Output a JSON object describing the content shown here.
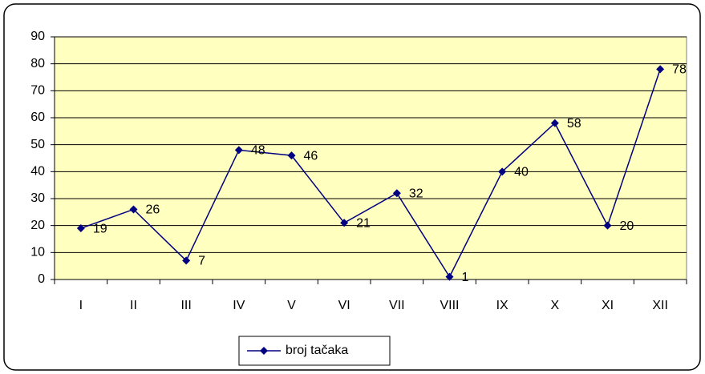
{
  "chart_data": {
    "type": "line",
    "categories": [
      "I",
      "II",
      "III",
      "IV",
      "V",
      "VI",
      "VII",
      "VIII",
      "IX",
      "X",
      "XI",
      "XII"
    ],
    "series": [
      {
        "name": "broj tačaka",
        "color": "#000080",
        "values": [
          19,
          26,
          7,
          48,
          46,
          21,
          32,
          1,
          40,
          58,
          20,
          78
        ]
      }
    ],
    "ylim": [
      0,
      90
    ],
    "yticks": [
      0,
      10,
      20,
      30,
      40,
      50,
      60,
      70,
      80,
      90
    ],
    "grid": true,
    "legend": "bottom",
    "plot_background": "#ffffc0"
  }
}
